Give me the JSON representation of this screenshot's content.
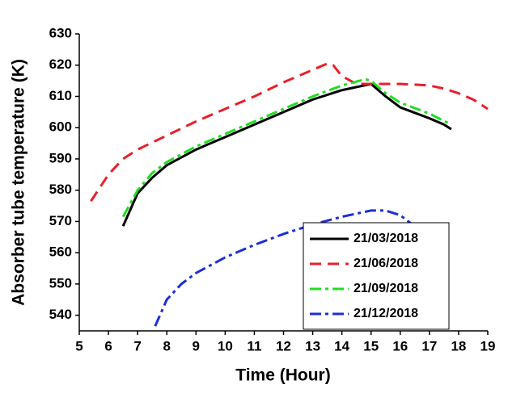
{
  "chart_data": {
    "type": "line",
    "x_label": "Time (Hour)",
    "y_label": "Absorber tube temperature (K)",
    "xlim": [
      5,
      19
    ],
    "xticks": [
      5,
      6,
      7,
      8,
      9,
      10,
      11,
      12,
      13,
      14,
      15,
      16,
      17,
      18,
      19
    ],
    "ylim": [
      535,
      630
    ],
    "yticks": [
      540,
      550,
      560,
      570,
      580,
      590,
      600,
      610,
      620,
      630
    ],
    "legend": "lower right",
    "series": [
      {
        "name": "21/03/2018",
        "color": "#000000",
        "style": "solid",
        "x": [
          6.5,
          7,
          7.5,
          8,
          9,
          10,
          11,
          12,
          13,
          14,
          15,
          15.5,
          16,
          17,
          17.5,
          17.75
        ],
        "values": [
          568.5,
          579,
          584,
          588,
          593,
          597,
          601,
          605,
          609,
          612,
          614,
          610,
          606.5,
          603,
          601,
          599.5
        ]
      },
      {
        "name": "21/06/2018",
        "color": "#e8202a",
        "style": "dash",
        "x": [
          5.4,
          6,
          6.5,
          7,
          8,
          9,
          10,
          11,
          12,
          13,
          13.5,
          13.7,
          14,
          14.5,
          15,
          16,
          17,
          17.5,
          18,
          18.5,
          19
        ],
        "values": [
          576.5,
          585,
          590,
          593,
          597.5,
          602,
          606,
          610,
          614.5,
          618.5,
          620.5,
          620,
          616.5,
          614,
          614,
          614,
          613.5,
          612.5,
          611,
          609,
          606
        ]
      },
      {
        "name": "21/09/2018",
        "color": "#22dd22",
        "style": "dashdot",
        "x": [
          6.5,
          7,
          7.5,
          8,
          9,
          10,
          11,
          12,
          13,
          14,
          14.8,
          15,
          15.5,
          16,
          17,
          17.75
        ],
        "values": [
          571.5,
          580,
          585.5,
          589,
          594,
          598,
          602,
          606,
          610,
          613.5,
          615.5,
          615,
          611,
          608,
          604.5,
          601
        ]
      },
      {
        "name": "21/12/2018",
        "color": "#1c2fd6",
        "style": "dashdot",
        "x": [
          7.6,
          8,
          8.5,
          9,
          10,
          11,
          12,
          13,
          14,
          15,
          15.5,
          16,
          16.7
        ],
        "values": [
          536.5,
          545,
          550,
          553.5,
          558.5,
          562.5,
          566,
          569,
          571.5,
          573.5,
          573.5,
          572,
          567
        ]
      }
    ]
  }
}
